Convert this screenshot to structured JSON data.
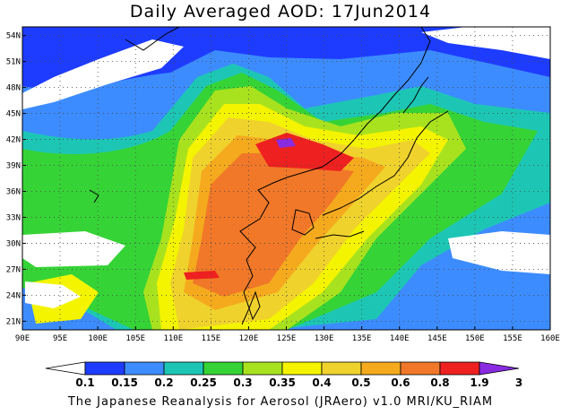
{
  "title": "Daily Averaged AOD: 17Jun2014",
  "credit": "The Japanese Reanalysis for Aerosol (JRAero) v1.0 MRI/KU_RIAM",
  "map": {
    "lon_range": [
      90,
      160
    ],
    "lat_range": [
      20,
      55
    ],
    "lon_ticks": [
      "90E",
      "95E",
      "100E",
      "105E",
      "110E",
      "115E",
      "120E",
      "125E",
      "130E",
      "135E",
      "140E",
      "145E",
      "150E",
      "155E",
      "160E"
    ],
    "lat_ticks": [
      "54N",
      "51N",
      "48N",
      "45N",
      "42N",
      "39N",
      "36N",
      "33N",
      "30N",
      "27N",
      "24N",
      "21N"
    ],
    "grid": "dotted"
  },
  "colorbar": {
    "labels": [
      "0.1",
      "0.15",
      "0.2",
      "0.25",
      "0.3",
      "0.35",
      "0.4",
      "0.5",
      "0.6",
      "0.8",
      "1.9",
      "3"
    ],
    "colors": [
      "#ffffff",
      "#1e3cff",
      "#3d8cff",
      "#1dc6b4",
      "#36d336",
      "#a8e21e",
      "#f4f400",
      "#f0d22d",
      "#f5aa1e",
      "#f07828",
      "#ee2020",
      "#8a2be2"
    ]
  }
}
